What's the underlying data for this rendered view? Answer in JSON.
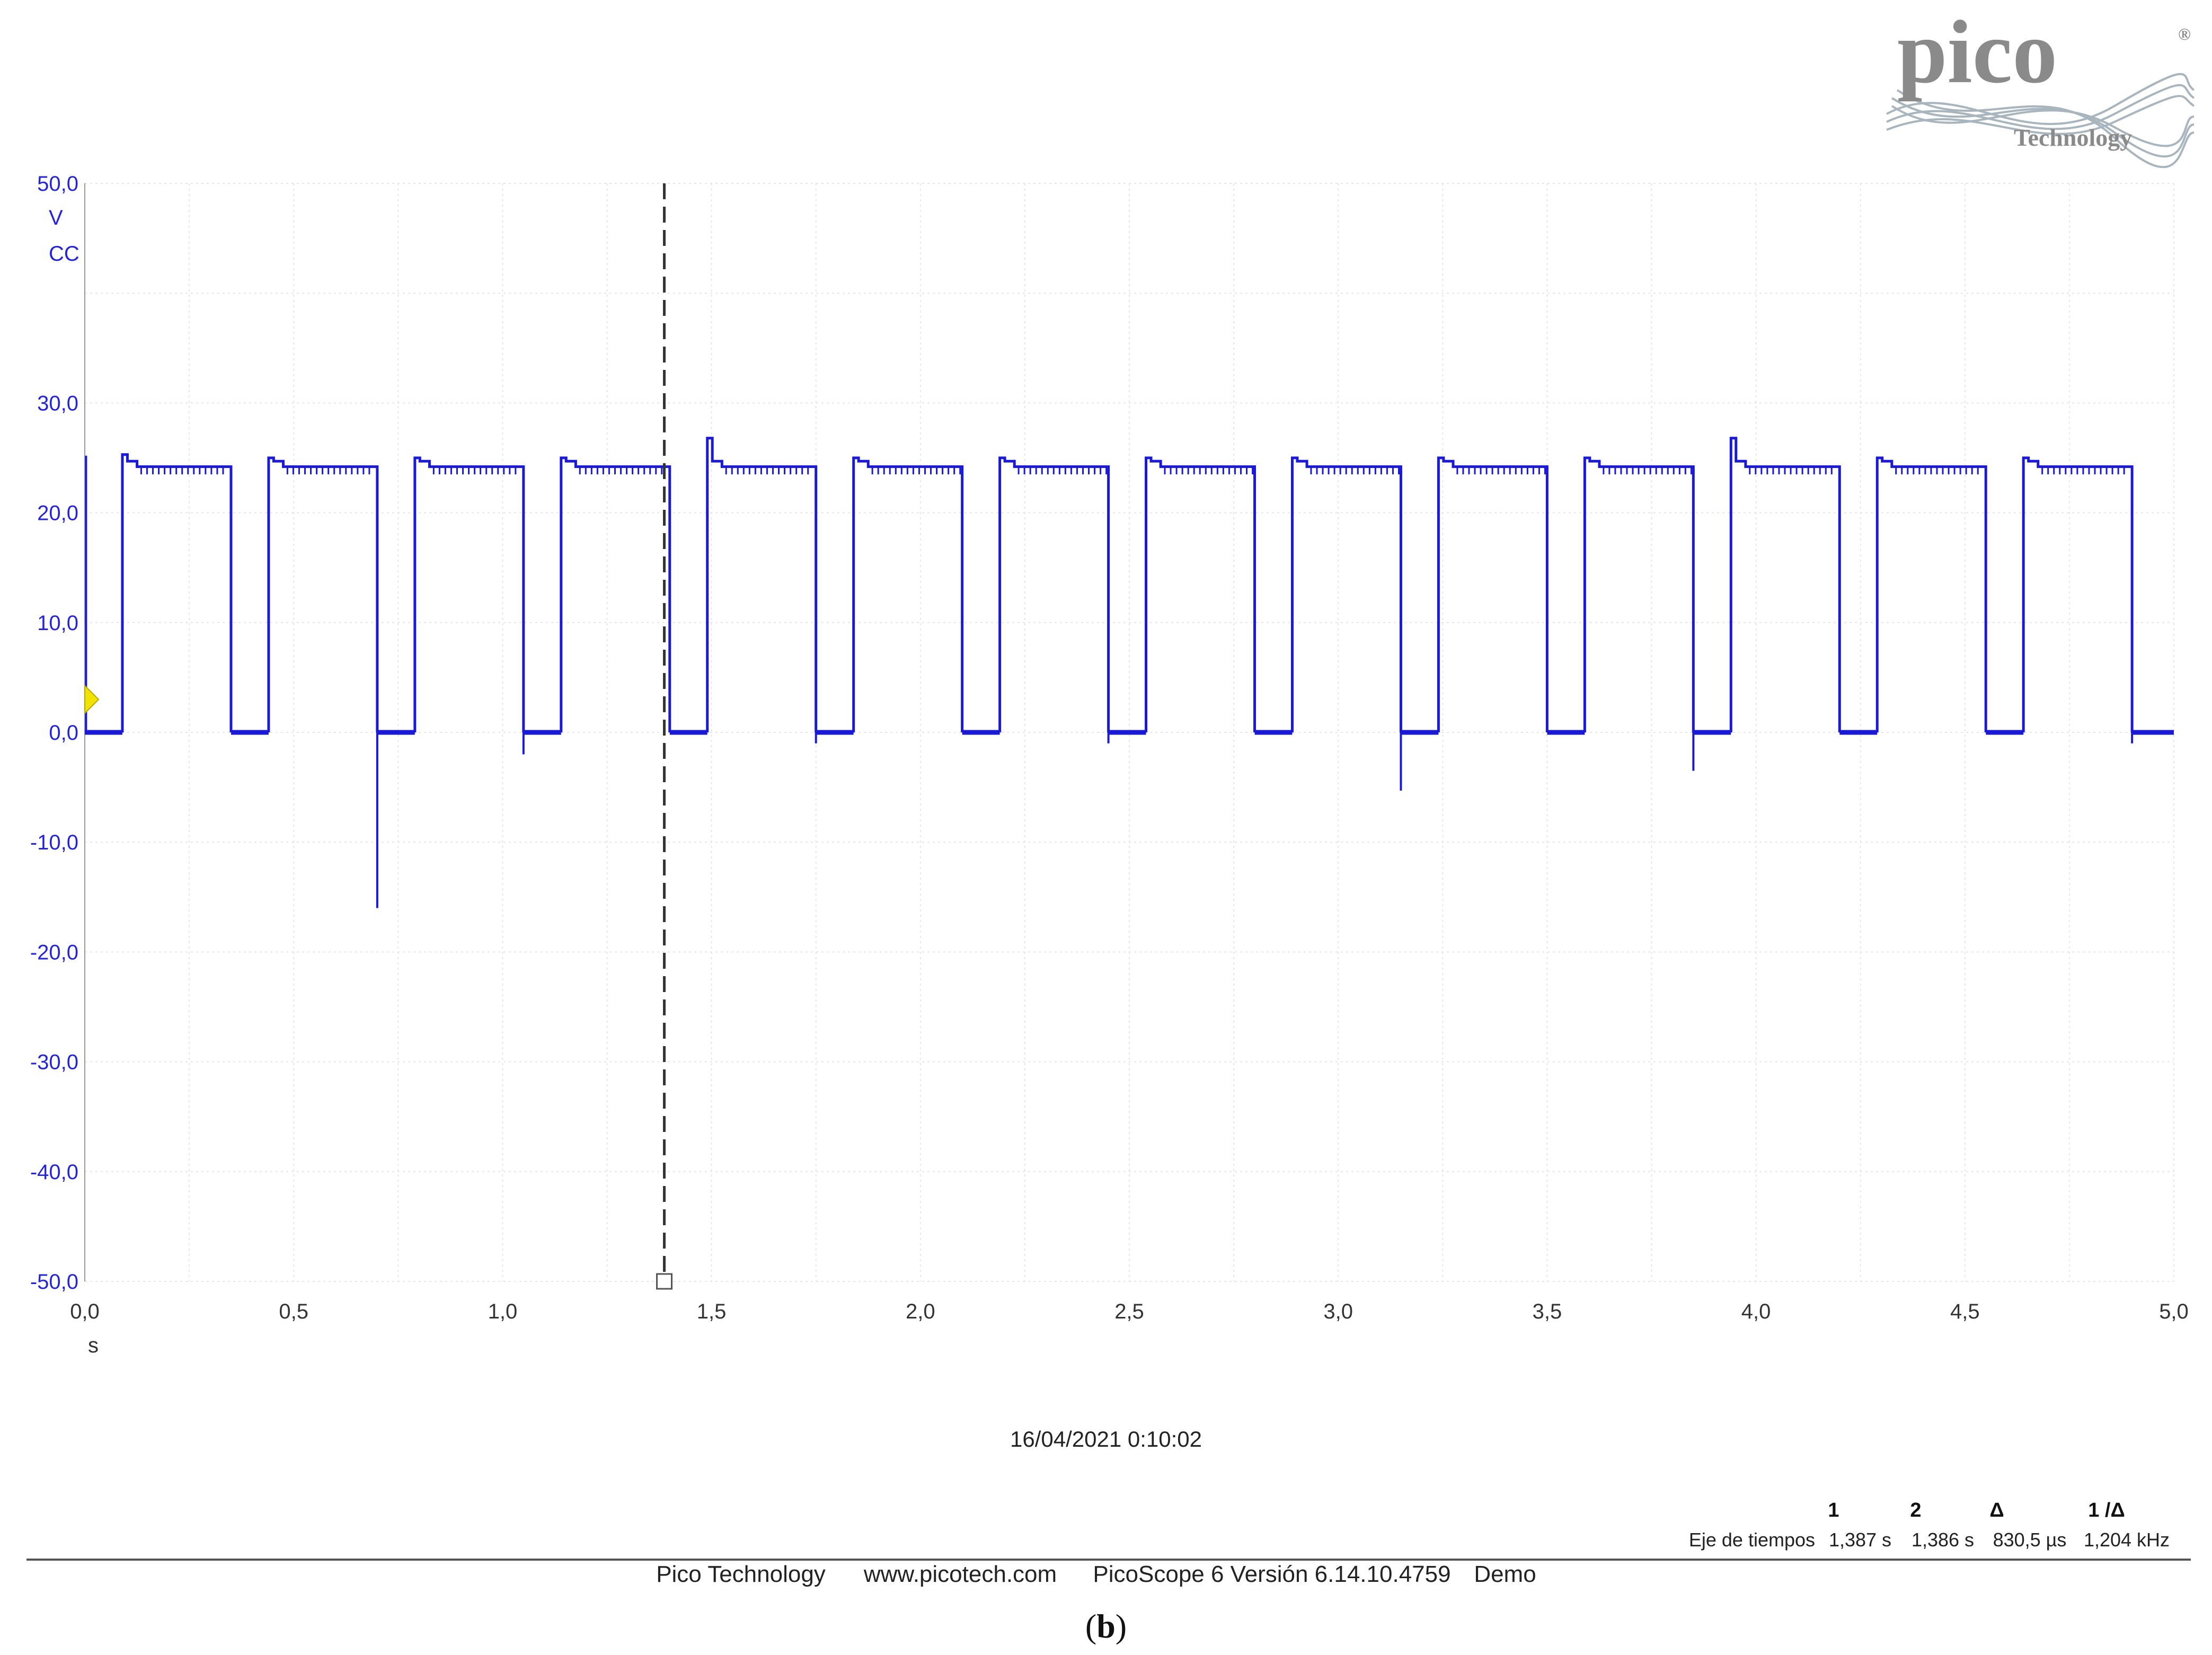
{
  "logo": {
    "name": "pico",
    "subtitle": "Technology",
    "registered": "®"
  },
  "chart_data": {
    "type": "line",
    "xlabel": "s",
    "ylabel_lines": [
      "V",
      "CC"
    ],
    "xlim": [
      0,
      5
    ],
    "ylim": [
      -50,
      50
    ],
    "x_ticks": [
      "0,0",
      "0,5",
      "1,0",
      "1,5",
      "2,0",
      "2,5",
      "3,0",
      "3,5",
      "4,0",
      "4,5",
      "5,0"
    ],
    "y_ticks": [
      "50,0",
      "30,0",
      "20,0",
      "10,0",
      "0,0",
      "-10,0",
      "-20,0",
      "-30,0",
      "-40,0",
      "-50,0"
    ],
    "y_tick_values": [
      50,
      30,
      20,
      10,
      0,
      -10,
      -20,
      -30,
      -40,
      -50
    ],
    "grid": true,
    "series_color": "#1a1ad6",
    "high_level": 24.2,
    "low_level": 0,
    "initial_segment": {
      "x_start": 0.0,
      "x_end": 0.09,
      "level": 0
    },
    "pulses": [
      {
        "rise": 0.09,
        "fall": 0.35,
        "overshoot": 25.3,
        "spike": null
      },
      {
        "rise": 0.44,
        "fall": 0.7,
        "overshoot": 25.0,
        "spike": -16.0
      },
      {
        "rise": 0.79,
        "fall": 1.05,
        "overshoot": 25.0,
        "spike": -2.0
      },
      {
        "rise": 1.14,
        "fall": 1.4,
        "overshoot": 25.0,
        "spike": null
      },
      {
        "rise": 1.49,
        "fall": 1.75,
        "overshoot": 26.8,
        "spike": -1.0
      },
      {
        "rise": 1.84,
        "fall": 2.1,
        "overshoot": 25.0,
        "spike": null
      },
      {
        "rise": 2.19,
        "fall": 2.45,
        "overshoot": 25.0,
        "spike": -1.0
      },
      {
        "rise": 2.54,
        "fall": 2.8,
        "overshoot": 25.0,
        "spike": null
      },
      {
        "rise": 2.89,
        "fall": 3.15,
        "overshoot": 25.0,
        "spike": -5.3
      },
      {
        "rise": 3.24,
        "fall": 3.5,
        "overshoot": 25.0,
        "spike": null
      },
      {
        "rise": 3.59,
        "fall": 3.85,
        "overshoot": 25.0,
        "spike": -3.5
      },
      {
        "rise": 3.94,
        "fall": 4.2,
        "overshoot": 26.8,
        "spike": null
      },
      {
        "rise": 4.29,
        "fall": 4.55,
        "overshoot": 25.0,
        "spike": null
      },
      {
        "rise": 4.64,
        "fall": 4.9,
        "overshoot": 25.0,
        "spike": -1.0
      }
    ],
    "final_segment": {
      "x_start": 4.9,
      "x_end": 5.0,
      "level": 0
    },
    "cursor": {
      "x": 1.387,
      "style": "dashed"
    },
    "trigger_marker": {
      "y": 3.0,
      "color": "#f2e200"
    }
  },
  "timestamp": "16/04/2021 0:10:02",
  "measurements": {
    "headers": [
      "1",
      "2",
      "Δ",
      "1 /Δ"
    ],
    "row_label": "Eje de tiempos",
    "values": [
      "1,387 s",
      "1,386 s",
      "830,5 µs",
      "1,204 kHz"
    ]
  },
  "footer": {
    "company": "Pico Technology",
    "website": "www.picotech.com",
    "version": "PicoScope 6 Versión 6.14.10.4759",
    "mode": "Demo"
  },
  "panel_label": {
    "open": "(",
    "letter": "b",
    "close": ")"
  }
}
